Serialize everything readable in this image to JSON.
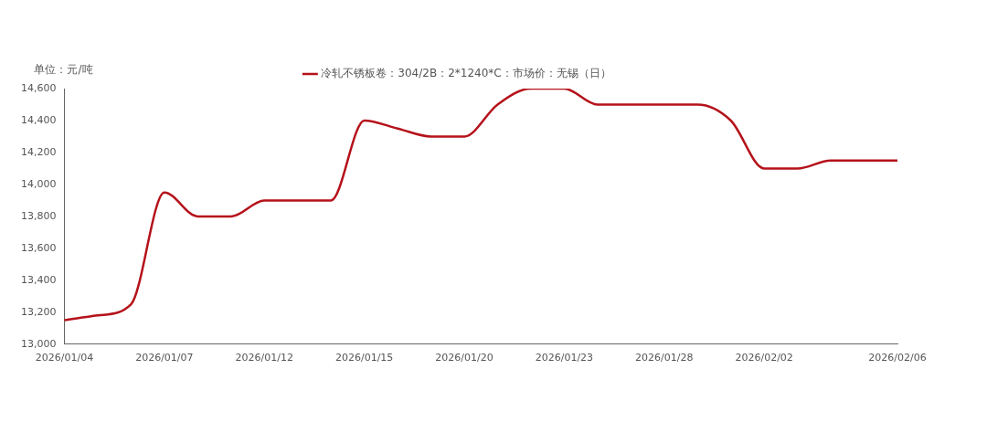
{
  "chart_data": {
    "type": "line",
    "ylabel": "单位：元/吨",
    "categories": [
      "2026/01/04",
      null,
      null,
      "2026/01/07",
      null,
      null,
      "2026/01/12",
      null,
      null,
      "2026/01/15",
      null,
      null,
      "2026/01/20",
      null,
      null,
      "2026/01/23",
      null,
      null,
      "2026/01/28",
      null,
      null,
      "2026/02/02",
      null,
      null,
      null,
      "2026/02/06"
    ],
    "series": [
      {
        "name": "冷轧不锈板卷：304/2B：2*1240*C：市场价：无锡（日）",
        "color": "#b5121b",
        "values": [
          13150,
          13180,
          13250,
          13950,
          13800,
          13800,
          13900,
          13900,
          13900,
          14400,
          14350,
          14300,
          14300,
          14500,
          14600,
          14600,
          14500,
          14500,
          14500,
          14500,
          14400,
          14100,
          14100,
          14150,
          14150,
          14150
        ]
      }
    ],
    "ylim": [
      13000,
      14600
    ],
    "yticks": [
      {
        "value": 13000,
        "label": "13,000"
      },
      {
        "value": 13200,
        "label": "13,200"
      },
      {
        "value": 13400,
        "label": "13,400"
      },
      {
        "value": 13600,
        "label": "13,600"
      },
      {
        "value": 13800,
        "label": "13,800"
      },
      {
        "value": 14000,
        "label": "14,000"
      },
      {
        "value": 14200,
        "label": "14,200"
      },
      {
        "value": 14400,
        "label": "14,400"
      },
      {
        "value": 14600,
        "label": "14,600"
      }
    ],
    "grid": false,
    "legend": "top",
    "marker": "none",
    "line_style": "solid"
  }
}
